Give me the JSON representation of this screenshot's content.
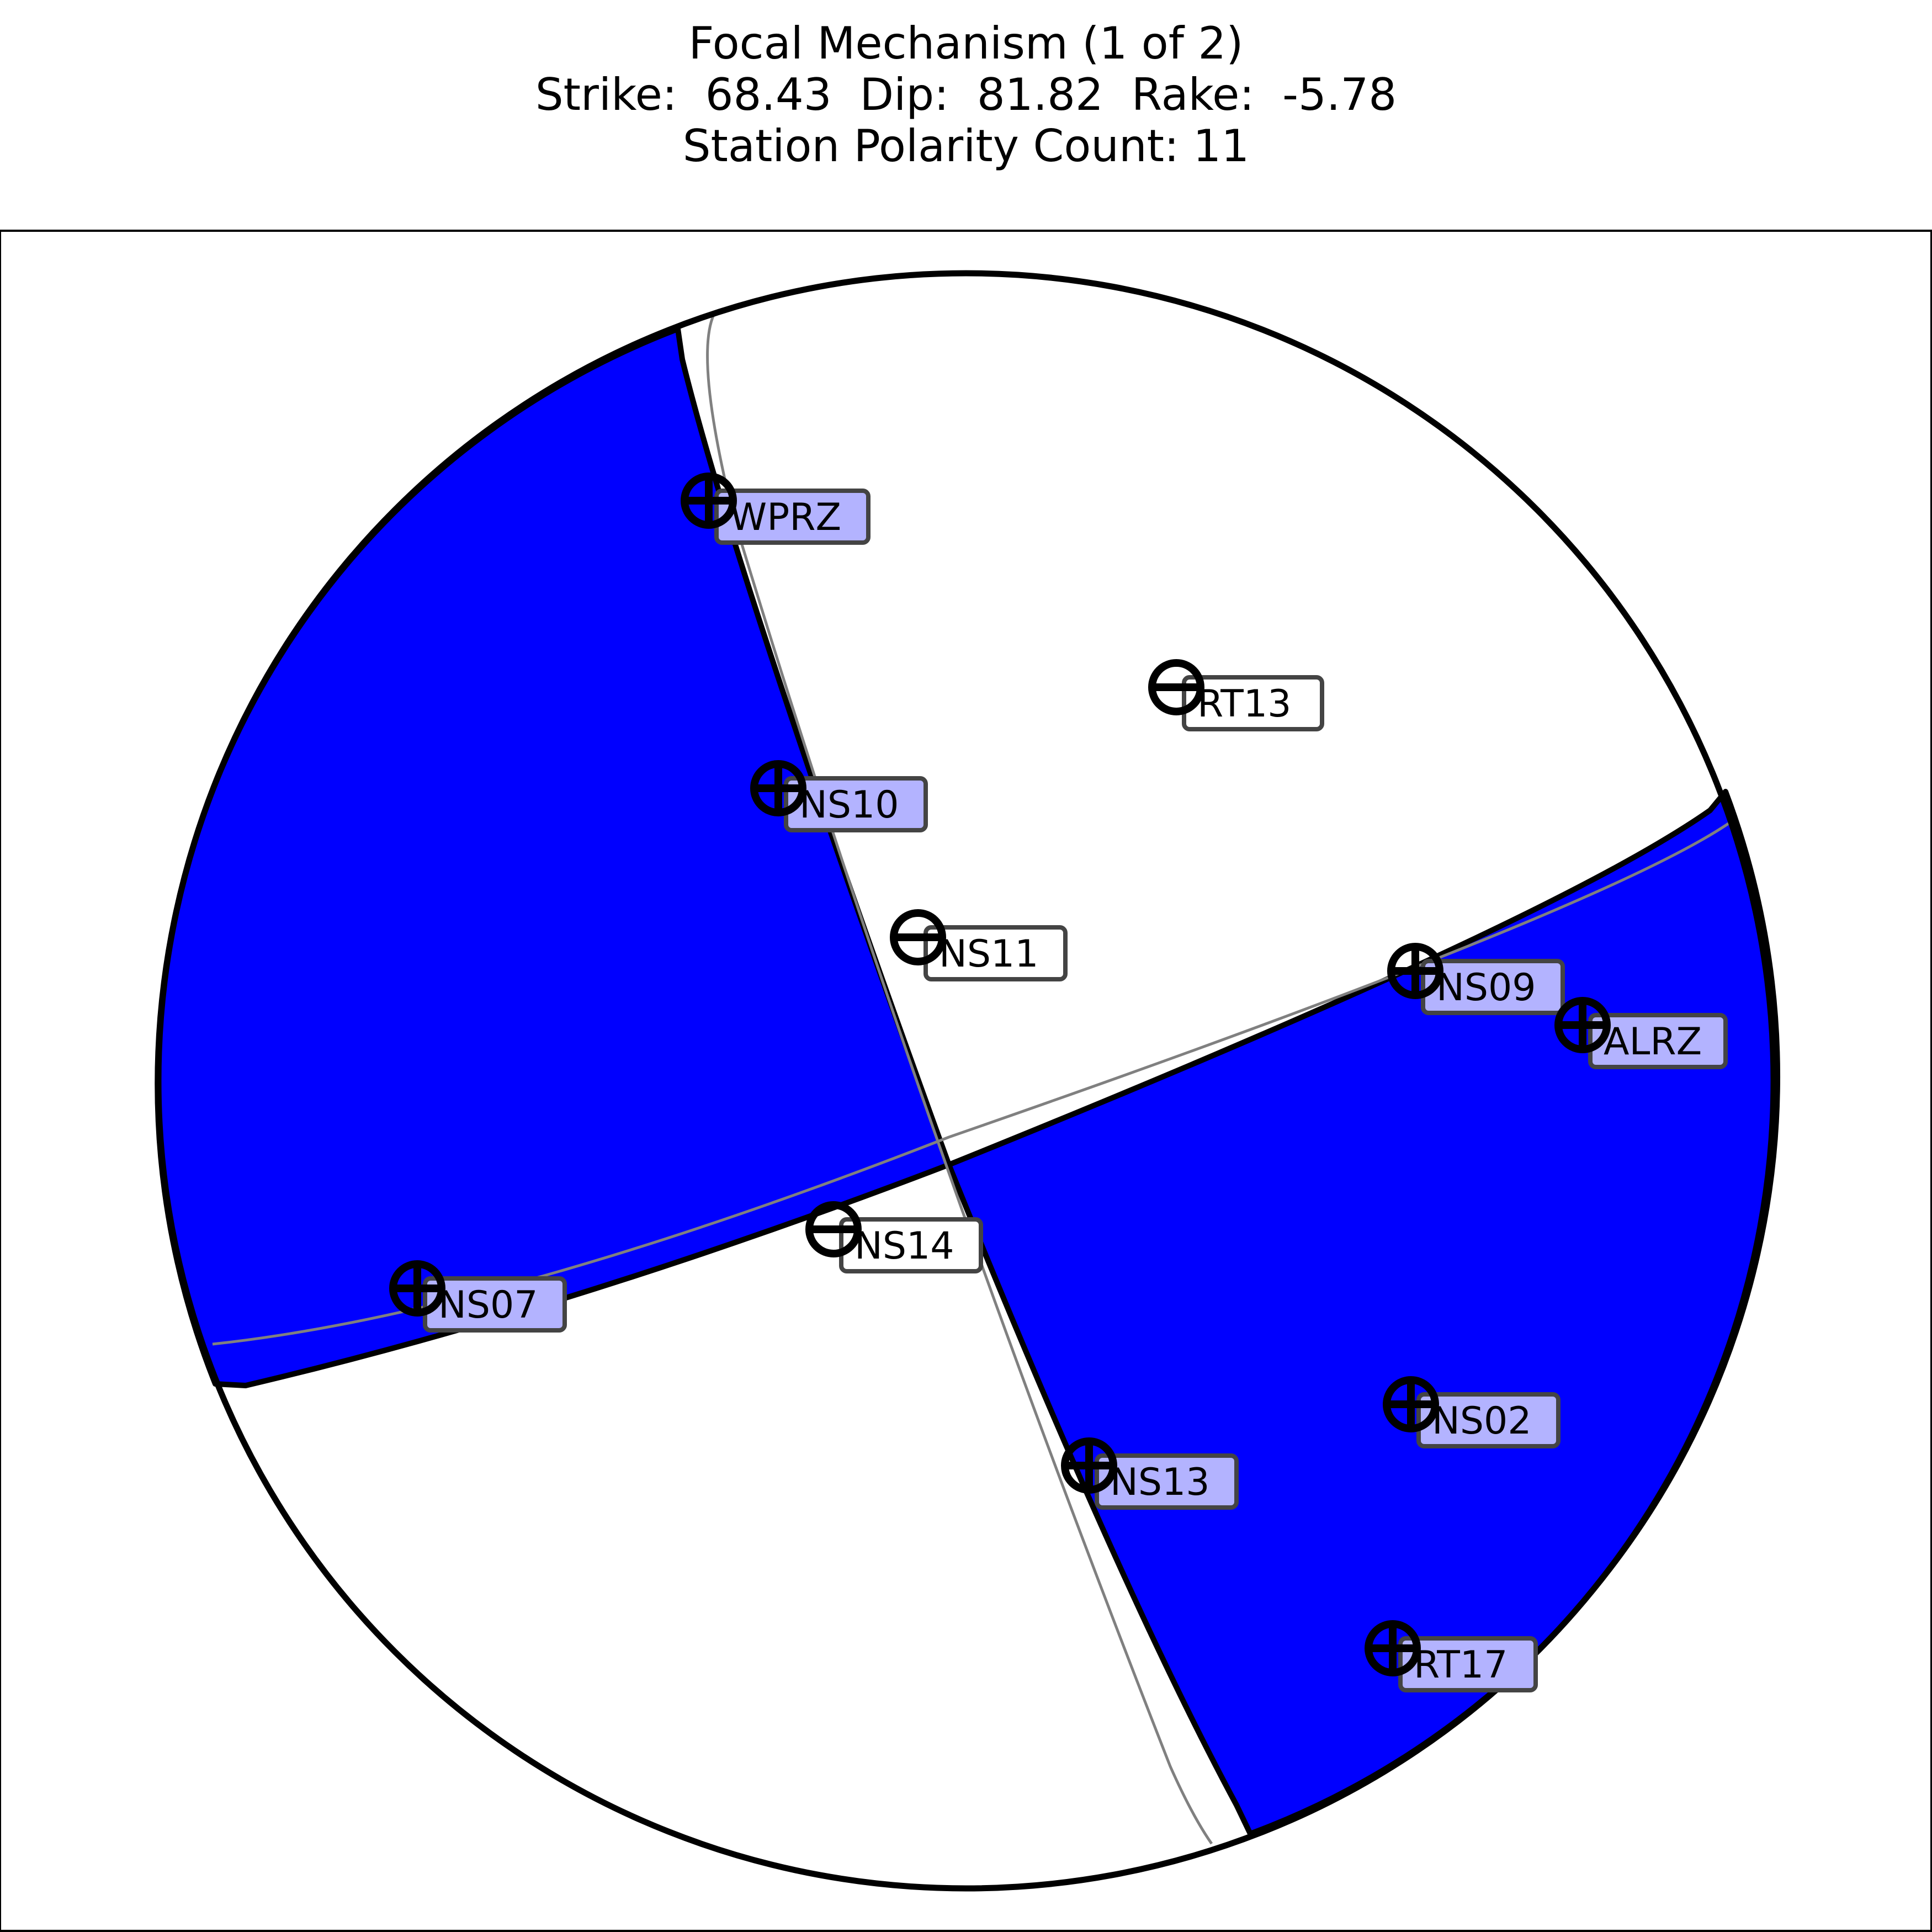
{
  "title": {
    "line1": "Focal Mechanism (1 of 2)",
    "line2": "Strike:  68.43  Dip:  81.82  Rake:  -5.78",
    "line3": "Station Polarity Count: 11"
  },
  "mechanism": {
    "strike": 68.43,
    "dip": 81.82,
    "rake": -5.78,
    "station_polarity_count": 11
  },
  "colors": {
    "compressional_fill": "#0000ff",
    "dilatational_fill": "#ffffff",
    "outline": "#000000",
    "auxiliary_line": "#808080",
    "positive_label_bg": "#b3b3ff",
    "negative_label_bg": "#ffffff"
  },
  "legend_marks": {
    "positive": "plus-circle",
    "negative": "minus-circle"
  },
  "stations": [
    {
      "name": "WPRZ",
      "polarity": "+"
    },
    {
      "name": "RT13",
      "polarity": "-"
    },
    {
      "name": "NS10",
      "polarity": "+"
    },
    {
      "name": "NS11",
      "polarity": "-"
    },
    {
      "name": "NS09",
      "polarity": "+"
    },
    {
      "name": "ALRZ",
      "polarity": "+"
    },
    {
      "name": "NS14",
      "polarity": "-"
    },
    {
      "name": "NS07",
      "polarity": "+"
    },
    {
      "name": "NS02",
      "polarity": "+"
    },
    {
      "name": "NS13",
      "polarity": "+"
    },
    {
      "name": "RT17",
      "polarity": "+"
    }
  ]
}
